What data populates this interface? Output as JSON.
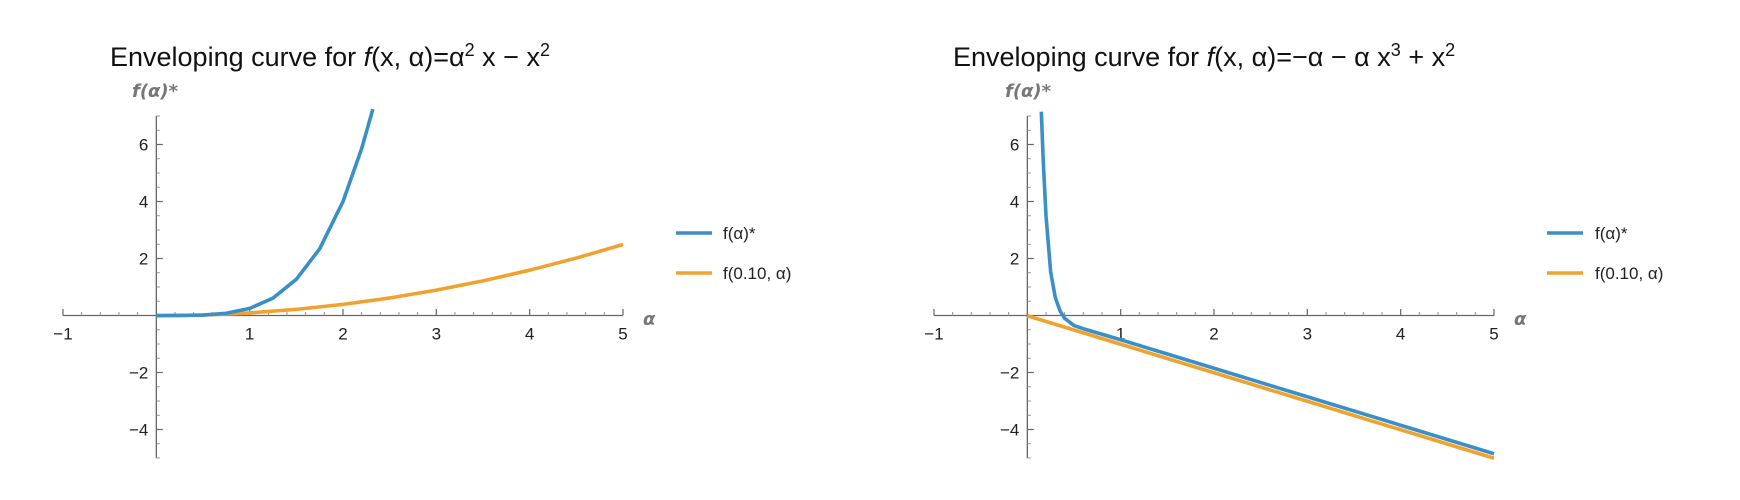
{
  "colors": {
    "blue": "#3a8fc4",
    "orange": "#f0a22e"
  },
  "chart_data": [
    {
      "type": "line",
      "title_prefix": "Enveloping curve for ",
      "title_func": "f",
      "title_args": "(x, α)",
      "title_expr": [
        "=",
        "α",
        "2",
        " x − x",
        "2"
      ],
      "xlabel": "α",
      "ylabel": "f(α)*",
      "xlim": [
        -1,
        5
      ],
      "ylim": [
        -5,
        7
      ],
      "xticks": [
        "−1",
        "1",
        "2",
        "3",
        "4",
        "5"
      ],
      "yticks": [
        "−4",
        "−2",
        "2",
        "4",
        "6"
      ],
      "legend": [
        {
          "label": "f(α)*",
          "color": "#3a8fc4"
        },
        {
          "label": "f(0.10, α)",
          "color": "#f0a22e"
        }
      ],
      "legend_position": "right",
      "series": [
        {
          "name": "f(α)*",
          "x": [
            0,
            0.25,
            0.5,
            0.75,
            1.0,
            1.25,
            1.5,
            1.75,
            2.0,
            2.2,
            2.32
          ],
          "y": [
            0,
            0.001,
            0.016,
            0.079,
            0.25,
            0.61,
            1.27,
            2.34,
            4.0,
            5.86,
            7.24
          ]
        },
        {
          "name": "f(0.10, α)",
          "x": [
            0,
            0.5,
            1,
            1.5,
            2,
            2.5,
            3,
            3.5,
            4,
            4.5,
            5
          ],
          "y": [
            -0.01,
            0.015,
            0.09,
            0.215,
            0.39,
            0.615,
            0.89,
            1.215,
            1.59,
            2.015,
            2.49
          ]
        }
      ]
    },
    {
      "type": "line",
      "title_prefix": "Enveloping curve for ",
      "title_func": "f",
      "title_args": "(x, α)",
      "title_expr": [
        "=−α − α x",
        "3",
        " + x",
        "2"
      ],
      "xlabel": "α",
      "ylabel": "f(α)*",
      "xlim": [
        -1,
        5
      ],
      "ylim": [
        -5,
        7
      ],
      "xticks": [
        "−1",
        "1",
        "2",
        "3",
        "4",
        "5"
      ],
      "yticks": [
        "−4",
        "−2",
        "2",
        "4",
        "6"
      ],
      "legend": [
        {
          "label": "f(α)*",
          "color": "#3a8fc4"
        },
        {
          "label": "f(0.10, α)",
          "color": "#f0a22e"
        }
      ],
      "legend_position": "right",
      "series": [
        {
          "name": "f(α)*",
          "x": [
            0.15,
            0.17,
            0.2,
            0.25,
            0.3,
            0.35,
            0.4,
            0.5,
            0.6,
            0.75,
            1,
            1.5,
            2,
            3,
            4,
            5
          ],
          "y": [
            7.15,
            5.45,
            3.5,
            1.525,
            0.625,
            0.166,
            -0.098,
            -0.352,
            -0.464,
            -0.61,
            -0.852,
            -1.35,
            -1.852,
            -2.85,
            -3.85,
            -4.85
          ]
        },
        {
          "name": "f(0.10, α)",
          "x": [
            0,
            1,
            2,
            3,
            4,
            5
          ],
          "y": [
            -0.01,
            -1.01,
            -2.01,
            -3.01,
            -4.01,
            -5.01
          ]
        }
      ]
    }
  ]
}
